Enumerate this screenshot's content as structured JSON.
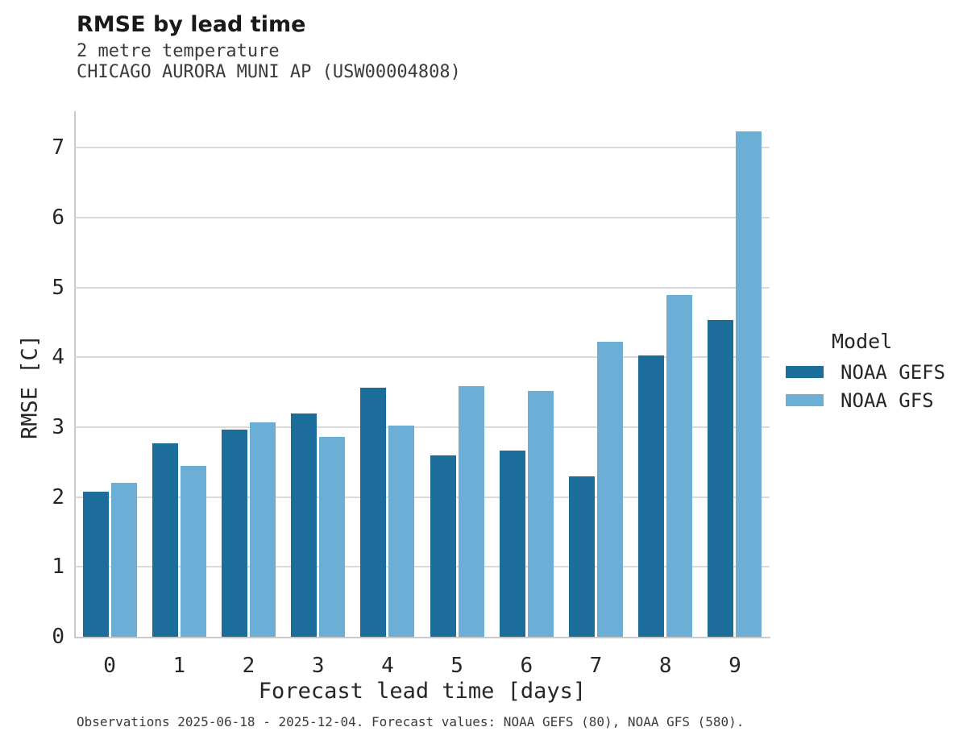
{
  "header": {
    "title": "RMSE by lead time",
    "subtitle_line1": "2 metre temperature",
    "subtitle_line2": "CHICAGO AURORA MUNI AP (USW00004808)"
  },
  "chart_data": {
    "type": "bar",
    "title": "RMSE by lead time",
    "subtitle": [
      "2 metre temperature",
      "CHICAGO AURORA MUNI AP (USW00004808)"
    ],
    "xlabel": "Forecast lead time [days]",
    "ylabel": "RMSE [C]",
    "categories": [
      "0",
      "1",
      "2",
      "3",
      "4",
      "5",
      "6",
      "7",
      "8",
      "9"
    ],
    "series": [
      {
        "name": "NOAA GEFS",
        "color": "#1c6d9c",
        "values": [
          2.08,
          2.77,
          2.96,
          3.2,
          3.57,
          2.6,
          2.67,
          2.3,
          4.03,
          4.53
        ]
      },
      {
        "name": "NOAA GFS",
        "color": "#6bafd6",
        "values": [
          2.2,
          2.45,
          3.07,
          2.86,
          3.02,
          3.59,
          3.52,
          4.22,
          4.89,
          7.23
        ]
      }
    ],
    "ylim": [
      0,
      7.5
    ],
    "yticks": [
      0,
      1,
      2,
      3,
      4,
      5,
      6,
      7
    ],
    "grid": "horizontal",
    "legend": {
      "title": "Model",
      "position": "right"
    }
  },
  "footer": {
    "text": "Observations 2025-06-18 - 2025-12-04. Forecast values: NOAA GEFS (80), NOAA GFS (580)."
  }
}
